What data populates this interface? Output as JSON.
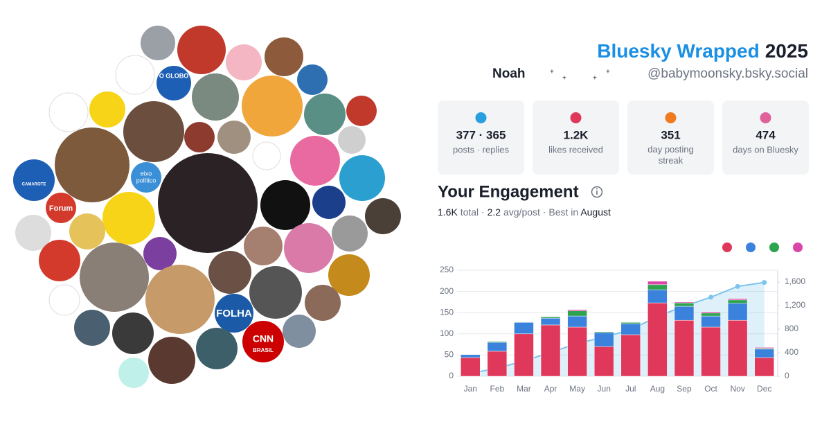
{
  "header": {
    "title": "Bluesky Wrapped",
    "year": "2025",
    "name": "Noah",
    "handle": "@babymoonsky.bsky.social"
  },
  "avatar_labels": [
    "O GLOBO",
    "Forum",
    "FOLHA",
    "CNN",
    "BRASIL",
    "eixo",
    "político",
    "CAMAROTE"
  ],
  "stats": [
    {
      "value": "377 · 365",
      "label": "posts · replies"
    },
    {
      "value": "1.2K",
      "label": "likes received"
    },
    {
      "value": "351",
      "label": "day posting streak"
    },
    {
      "value": "474",
      "label": "days on Bluesky"
    }
  ],
  "engagement": {
    "title": "Your Engagement",
    "total": "1.6K",
    "total_label": "total",
    "avg": "2.2",
    "avg_label": "avg/post",
    "best_prefix": "Best in",
    "best": "August"
  },
  "chart_data": {
    "type": "bar",
    "stacked": true,
    "categories": [
      "Jan",
      "Feb",
      "Mar",
      "Apr",
      "May",
      "Jun",
      "Jul",
      "Aug",
      "Sep",
      "Oct",
      "Nov",
      "Dec"
    ],
    "series": [
      {
        "color": "#e0385a",
        "values": [
          44,
          59,
          100,
          121,
          116,
          70,
          98,
          173,
          132,
          116,
          132,
          44
        ]
      },
      {
        "color": "#3b82dc",
        "values": [
          7,
          21,
          27,
          16,
          26,
          33,
          26,
          31,
          33,
          26,
          40,
          20
        ]
      },
      {
        "color": "#2ea44f",
        "values": [
          0,
          2,
          1,
          3,
          12,
          2,
          3,
          12,
          8,
          7,
          8,
          2
        ]
      },
      {
        "color": "#d946a8",
        "values": [
          0,
          0,
          0,
          0,
          3,
          0,
          0,
          8,
          2,
          3,
          3,
          2
        ]
      },
      {
        "type": "line",
        "axis": "y2",
        "color": "#7cc4ec",
        "values": [
          51,
          134,
          262,
          402,
          559,
          664,
          791,
          1015,
          1190,
          1342,
          1525,
          1593
        ]
      }
    ],
    "ylim": [
      0,
      250
    ],
    "yticks": [
      0,
      50,
      100,
      150,
      200,
      250
    ],
    "y2lim": [
      0,
      1800
    ],
    "y2ticks": [
      0,
      400,
      800,
      {
        "value": 1200,
        "label": "1,200"
      },
      {
        "value": 1600,
        "label": "1,600"
      }
    ],
    "grid": true
  }
}
